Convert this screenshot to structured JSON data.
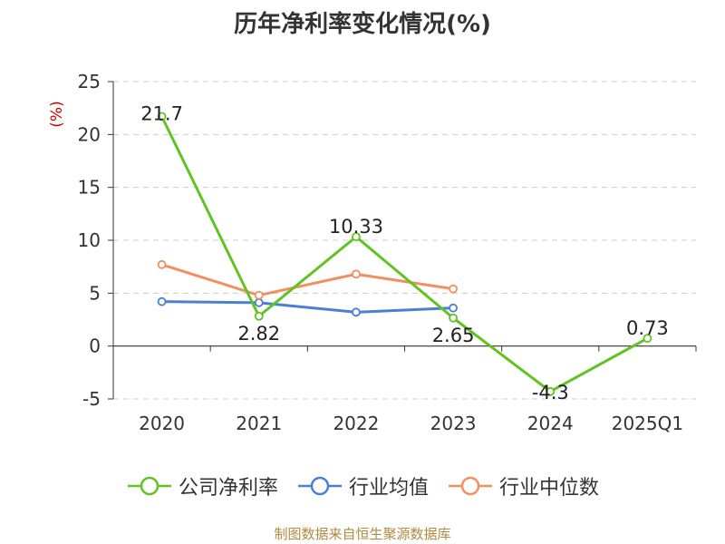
{
  "chart_data": {
    "type": "line",
    "title": "历年净利率变化情况(%)",
    "ylabel": "(%)",
    "categories": [
      "2020",
      "2021",
      "2022",
      "2023",
      "2024",
      "2025Q1"
    ],
    "ylim": [
      -5,
      25
    ],
    "yticks": [
      25,
      20,
      15,
      10,
      5,
      0,
      -5
    ],
    "grid": true,
    "legend_position": "bottom",
    "series": [
      {
        "name": "公司净利率",
        "color": "#5fc320",
        "values": [
          21.7,
          2.82,
          10.33,
          2.65,
          -4.3,
          0.73
        ],
        "labels": [
          "21.7",
          "2.82",
          "10.33",
          "2.65",
          "-4.3",
          "0.73"
        ]
      },
      {
        "name": "行业均值",
        "color": "#4a7fd8",
        "values": [
          4.2,
          4.1,
          3.2,
          3.6,
          null,
          null
        ]
      },
      {
        "name": "行业中位数",
        "color": "#f28f5e",
        "values": [
          7.7,
          4.8,
          6.8,
          5.4,
          null,
          null
        ]
      }
    ]
  },
  "source_text": "制图数据来自恒生聚源数据库"
}
